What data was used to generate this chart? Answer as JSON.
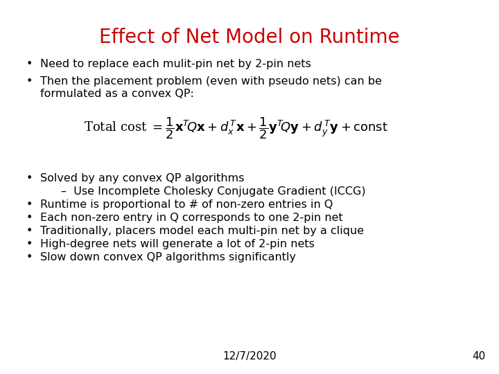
{
  "title": "Effect of Net Model on Runtime",
  "title_color": "#CC0000",
  "title_fontsize": 20,
  "background_color": "#FFFFFF",
  "bullet_fontsize": 11.5,
  "bullet_color": "#000000",
  "footer_date": "12/7/2020",
  "footer_page": "40",
  "bullets_top": [
    "Need to replace each mulit-pin net by 2-pin nets",
    "Then the placement problem (even with pseudo nets) can be\nformulated as a convex QP:"
  ],
  "bullets_bottom": [
    "Solved by any convex QP algorithms",
    "–  Use Incomplete Cholesky Conjugate Gradient (ICCG)",
    "Runtime is proportional to # of non-zero entries in Q",
    "Each non-zero entry in Q corresponds to one 2-pin net",
    "Traditionally, placers model each multi-pin net by a clique",
    "High-degree nets will generate a lot of 2-pin nets",
    "Slow down convex QP algorithms significantly"
  ]
}
